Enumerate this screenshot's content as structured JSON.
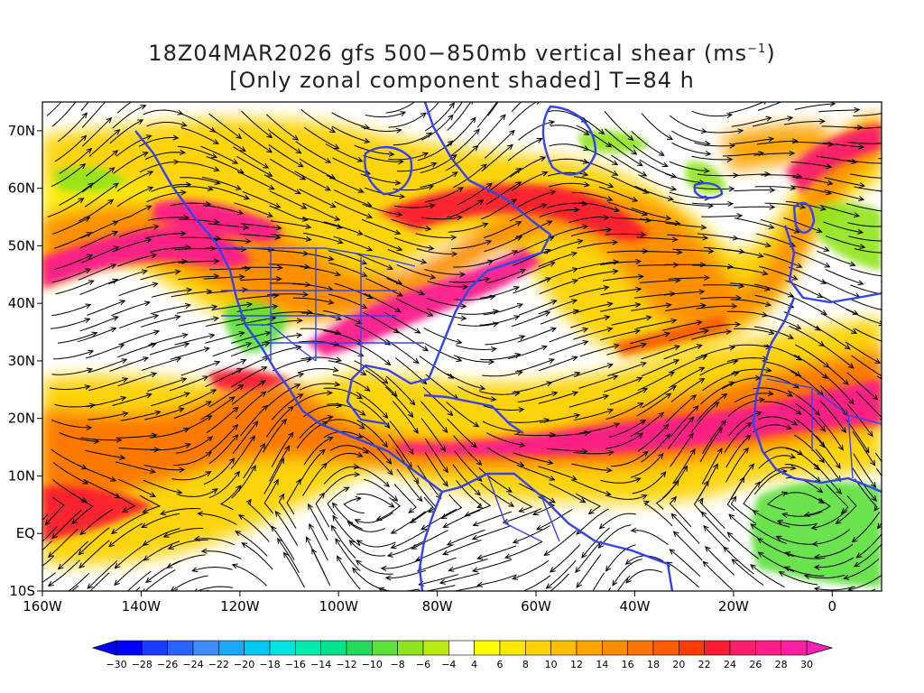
{
  "title": {
    "line1_prefix": "18Z04MAR2026 gfs 500−850mb vertical shear (ms",
    "line1_sup": "−1",
    "line1_suffix": ")",
    "line2": "[Only zonal component shaded] T=84 h"
  },
  "map": {
    "lon_range": [
      -160,
      10
    ],
    "lat_range": [
      -10,
      75
    ],
    "lat_ticks": [
      {
        "lat": 70,
        "label": "70N"
      },
      {
        "lat": 60,
        "label": "60N"
      },
      {
        "lat": 50,
        "label": "50N"
      },
      {
        "lat": 40,
        "label": "40N"
      },
      {
        "lat": 30,
        "label": "30N"
      },
      {
        "lat": 20,
        "label": "20N"
      },
      {
        "lat": 10,
        "label": "10N"
      },
      {
        "lat": 0,
        "label": "EQ"
      },
      {
        "lat": -10,
        "label": "10S"
      }
    ],
    "lon_ticks": [
      {
        "lon": -160,
        "label": "160W"
      },
      {
        "lon": -140,
        "label": "140W"
      },
      {
        "lon": -120,
        "label": "120W"
      },
      {
        "lon": -100,
        "label": "100W"
      },
      {
        "lon": -80,
        "label": "80W"
      },
      {
        "lon": -60,
        "label": "60W"
      },
      {
        "lon": -40,
        "label": "40W"
      },
      {
        "lon": -20,
        "label": "20W"
      },
      {
        "lon": 0,
        "label": "0"
      }
    ],
    "coastline_color": "#3344ee",
    "streamline_color": "#000000"
  },
  "colorbar": {
    "labels": [
      "−30",
      "−28",
      "−26",
      "−24",
      "−22",
      "−20",
      "−18",
      "−16",
      "−14",
      "−12",
      "−10",
      "−8",
      "−6",
      "−4",
      "4",
      "6",
      "8",
      "10",
      "12",
      "14",
      "16",
      "18",
      "20",
      "22",
      "24",
      "26",
      "28",
      "30"
    ],
    "colors": [
      "#0000ff",
      "#1a3cff",
      "#2a64ff",
      "#3a8cff",
      "#18a8ff",
      "#00c8f0",
      "#00e4e0",
      "#00eab0",
      "#00e28c",
      "#22dc5c",
      "#5ce03a",
      "#90e41e",
      "#b8ea14",
      "#ffffff",
      "#ffff00",
      "#fce800",
      "#fcd200",
      "#fcbc00",
      "#fca400",
      "#fc8c00",
      "#fc7400",
      "#fc5c00",
      "#fc3c00",
      "#fc1e30",
      "#fc1e6c",
      "#fc1e8c",
      "#fc20a4"
    ],
    "under_color": "#0000ff",
    "over_color": "#fc20b8"
  }
}
